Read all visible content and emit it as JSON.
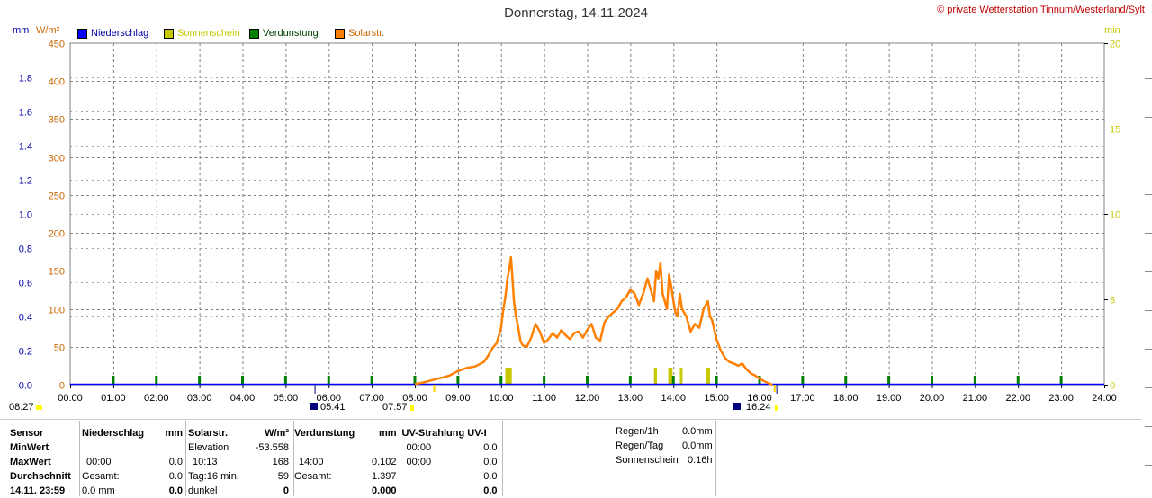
{
  "header": {
    "title": "Donnerstag, 14.11.2024",
    "copyright": "© private Wetterstation Tinnum/Westerland/Sylt",
    "unit_left_mm": "mm",
    "unit_left_wm2": "W/m²",
    "unit_right_min": "min"
  },
  "legend": [
    {
      "label": "Niederschlag",
      "color": "#0000ff",
      "text_color": "#0000aa"
    },
    {
      "label": "Sonnenschein",
      "color": "#c8c800",
      "text_color": "#c8c800"
    },
    {
      "label": "Verdunstung",
      "color": "#008000",
      "text_color": "#004000"
    },
    {
      "label": "Solarstr.",
      "color": "#ff8000",
      "text_color": "#cc6600"
    }
  ],
  "chart_data": {
    "type": "line",
    "x_ticks": [
      "00:00",
      "01:00",
      "02:00",
      "03:00",
      "04:00",
      "05:00",
      "06:00",
      "07:00",
      "08:00",
      "09:00",
      "10:00",
      "11:00",
      "12:00",
      "13:00",
      "14:00",
      "15:00",
      "16:00",
      "17:00",
      "18:00",
      "19:00",
      "20:00",
      "21:00",
      "22:00",
      "23:00",
      "24:00"
    ],
    "y_left_mm_ticks": [
      "0.0",
      "0.2",
      "0.4",
      "0.6",
      "0.8",
      "1.0",
      "1.2",
      "1.4",
      "1.6",
      "1.8"
    ],
    "y_left_wm2_ticks": [
      "0",
      "50",
      "100",
      "150",
      "200",
      "250",
      "300",
      "350",
      "400",
      "450"
    ],
    "y_right_min_ticks": [
      "0",
      "5",
      "10",
      "15",
      "20"
    ],
    "ylim_wm2": [
      0,
      450
    ],
    "ylim_mm": [
      0,
      2.0
    ],
    "ylim_min": [
      0,
      20
    ],
    "grid": true,
    "solar_series": {
      "name": "Solarstr.",
      "color": "#ff8000",
      "x_hours": [
        8.0,
        8.2,
        8.4,
        8.6,
        8.8,
        9.0,
        9.2,
        9.4,
        9.6,
        9.7,
        9.8,
        9.9,
        10.0,
        10.05,
        10.1,
        10.15,
        10.2,
        10.23,
        10.26,
        10.3,
        10.35,
        10.4,
        10.45,
        10.5,
        10.6,
        10.7,
        10.8,
        10.9,
        11.0,
        11.1,
        11.2,
        11.3,
        11.4,
        11.5,
        11.6,
        11.7,
        11.8,
        11.9,
        12.0,
        12.1,
        12.2,
        12.3,
        12.4,
        12.5,
        12.6,
        12.7,
        12.8,
        12.9,
        13.0,
        13.1,
        13.2,
        13.3,
        13.4,
        13.5,
        13.55,
        13.6,
        13.65,
        13.7,
        13.75,
        13.8,
        13.85,
        13.9,
        13.95,
        14.0,
        14.05,
        14.1,
        14.15,
        14.2,
        14.3,
        14.4,
        14.5,
        14.6,
        14.7,
        14.8,
        14.85,
        14.9,
        15.0,
        15.1,
        15.2,
        15.3,
        15.4,
        15.5,
        15.6,
        15.7,
        15.8,
        15.9,
        16.0,
        16.1,
        16.2,
        16.3
      ],
      "y_wm2": [
        1,
        3,
        6,
        9,
        12,
        18,
        22,
        24,
        30,
        38,
        48,
        55,
        75,
        98,
        115,
        140,
        155,
        168,
        145,
        110,
        90,
        75,
        58,
        52,
        50,
        62,
        80,
        70,
        55,
        60,
        68,
        62,
        72,
        65,
        60,
        68,
        70,
        62,
        72,
        80,
        62,
        58,
        82,
        90,
        95,
        100,
        110,
        115,
        125,
        120,
        105,
        120,
        140,
        120,
        110,
        150,
        140,
        160,
        120,
        110,
        100,
        145,
        130,
        110,
        95,
        90,
        120,
        100,
        90,
        70,
        80,
        75,
        100,
        110,
        90,
        85,
        60,
        45,
        35,
        30,
        28,
        25,
        28,
        20,
        15,
        12,
        8,
        5,
        2,
        0
      ]
    },
    "sunshine_bars": [
      {
        "start_hours": 10.1,
        "end_hours": 10.25,
        "minutes": 1.0
      },
      {
        "start_hours": 13.55,
        "end_hours": 13.62,
        "minutes": 1.0
      },
      {
        "start_hours": 13.88,
        "end_hours": 13.98,
        "minutes": 1.0
      },
      {
        "start_hours": 14.15,
        "end_hours": 14.2,
        "minutes": 1.0
      },
      {
        "start_hours": 14.75,
        "end_hours": 14.85,
        "minutes": 1.0
      }
    ],
    "evaporation_ticks_hours": [
      1,
      2,
      3,
      4,
      5,
      6,
      7,
      8,
      9,
      10,
      11,
      12,
      13,
      14,
      15,
      16,
      17,
      18,
      19,
      20,
      21,
      22,
      23
    ],
    "markers": {
      "left_sun": "08:27",
      "sunrise": "05:41",
      "morning": "07:57",
      "sunset": "16:24"
    }
  },
  "stats": {
    "row_labels": [
      "Sensor",
      "MinWert",
      "MaxWert",
      "Durchschnitt",
      "14.11. 23:59"
    ],
    "niederschlag": {
      "header": "Niederschlag",
      "unit": "mm",
      "rows": [
        [
          "",
          ""
        ],
        [
          "00:00",
          "0.0"
        ],
        [
          "Gesamt:",
          "0.0"
        ],
        [
          "0.0 mm",
          "0.0"
        ]
      ]
    },
    "solar": {
      "header": "Solarstr.",
      "unit": "W/m²",
      "rows": [
        [
          "Elevation",
          "-53.558"
        ],
        [
          "10:13",
          "168"
        ],
        [
          "Tag:16 min.",
          "59"
        ],
        [
          "dunkel",
          "0"
        ]
      ]
    },
    "verdunstung": {
      "header": "Verdunstung",
      "unit": "mm",
      "rows": [
        [
          "",
          ""
        ],
        [
          "14:00",
          "0.102"
        ],
        [
          "Gesamt:",
          "1.397"
        ],
        [
          "",
          "0.000"
        ]
      ]
    },
    "uv": {
      "header": "UV-Strahlung UV-I",
      "rows": [
        [
          "00:00",
          "0.0"
        ],
        [
          "00:00",
          "0.0"
        ],
        [
          "",
          "0.0"
        ],
        [
          "",
          "0.0"
        ]
      ]
    },
    "right_info": [
      {
        "label": "Regen/1h",
        "value": "0.0mm"
      },
      {
        "label": "Regen/Tag",
        "value": "0.0mm"
      },
      {
        "label": "Sonnenschein",
        "value": "0:16h"
      }
    ]
  }
}
